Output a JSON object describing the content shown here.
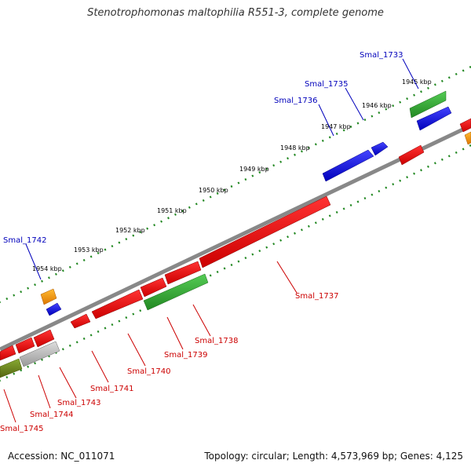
{
  "title": "Stenotrophomonas maltophilia R551-3, complete genome",
  "footer": {
    "accession": "Accession: NC_011071",
    "summary": "Topology: circular; Length: 4,573,969 bp; Genes: 4,125"
  },
  "ticks": [
    "1945 kbp",
    "1946 kbp",
    "1947 kbp",
    "1948 kbp",
    "1949 kbp",
    "1950 kbp",
    "1951 kbp",
    "1952 kbp",
    "1953 kbp",
    "1954 kbp"
  ],
  "genes_outer": [
    "Smal_1733",
    "Smal_1735",
    "Smal_1736",
    "Smal_1742"
  ],
  "genes_inner": [
    "Smal_1737",
    "Smal_1738",
    "Smal_1739",
    "Smal_1740",
    "Smal_1741",
    "Smal_1743",
    "Smal_1744",
    "Smal_1745"
  ],
  "colors": {
    "forward_cds": "#0000dd",
    "reverse_cds": "#ee0000",
    "rna": "#33aa33",
    "other": "#ff9900",
    "backbone": "#888888",
    "tick": "#228822",
    "outer_label": "#0000bb",
    "inner_label": "#cc0000"
  }
}
